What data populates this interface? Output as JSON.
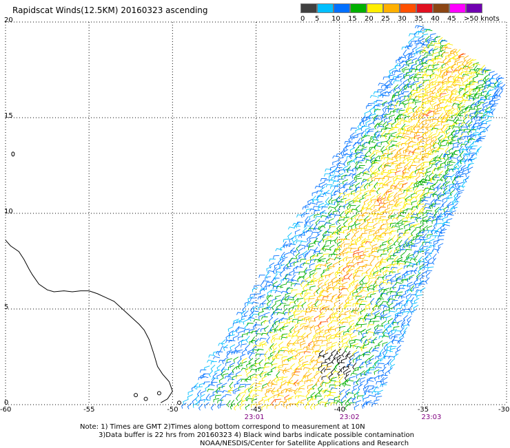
{
  "title": "Rapidscat Winds(12.5KM) 20160323 ascending",
  "legend": {
    "labels": [
      "0",
      "5",
      "10",
      "15",
      "20",
      "25",
      "30",
      "35",
      "40",
      "45",
      ">50 knots"
    ],
    "colors": [
      "#404040",
      "#00bfff",
      "#0070ff",
      "#00b000",
      "#ffee00",
      "#ffb000",
      "#ff5000",
      "#e01020",
      "#8b4513",
      "#ff00ff",
      "#7000b0"
    ]
  },
  "axes": {
    "x_ticks": [
      "-60",
      "-55",
      "-50",
      "-45",
      "-40",
      "-35",
      "-30"
    ],
    "y_ticks": [
      "0",
      "5",
      "10",
      "15",
      "20"
    ],
    "x_range": [
      -60,
      -30
    ],
    "y_range": [
      0,
      20
    ]
  },
  "times": [
    {
      "label": "23:01",
      "lon": -45.2
    },
    {
      "label": "23:02",
      "lon": -39.5
    },
    {
      "label": "23:03",
      "lon": -34.6
    }
  ],
  "notes": {
    "line1": "Note: 1) Times are GMT 2)Times along bottom correspond to measurement at 10N",
    "line2": "3)Data buffer is 22 hrs from 20160323 4) Black wind barbs indicate possible contamination",
    "line3": "NOAA/NESDIS/Center for Satellite Applications and Research"
  }
}
